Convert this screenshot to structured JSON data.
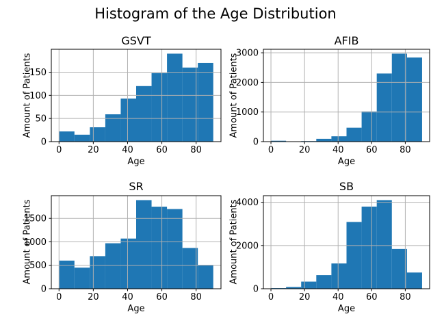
{
  "figure": {
    "title": "Histogram of the Age Distribution"
  },
  "colors": {
    "bar": "#1f77b4",
    "grid": "#b0b0b0",
    "spine": "#000000",
    "background": "#ffffff"
  },
  "chart_data": [
    {
      "type": "bar",
      "title": "GSVT",
      "xlabel": "Age",
      "ylabel": "Amount of Patients",
      "bin_start": 0,
      "bin_width": 9,
      "values": [
        22,
        15,
        31,
        59,
        93,
        120,
        148,
        190,
        160,
        170
      ],
      "xticks": [
        0,
        20,
        40,
        60,
        80
      ],
      "yticks": [
        0,
        50,
        100,
        150
      ],
      "xlim": [
        -4.5,
        94.5
      ],
      "ylim": [
        0,
        199.5
      ],
      "grid": true
    },
    {
      "type": "bar",
      "title": "AFIB",
      "xlabel": "Age",
      "ylabel": "Amount of Patients",
      "bin_start": 0,
      "bin_width": 9,
      "values": [
        30,
        8,
        18,
        95,
        180,
        470,
        1020,
        2300,
        2970,
        2840
      ],
      "xticks": [
        0,
        20,
        40,
        60,
        80
      ],
      "yticks": [
        0,
        1000,
        2000,
        3000
      ],
      "xlim": [
        -4.5,
        94.5
      ],
      "ylim": [
        0,
        3118.5
      ],
      "grid": true
    },
    {
      "type": "bar",
      "title": "SR",
      "xlabel": "Age",
      "ylabel": "Amount of Patients",
      "bin_start": 0,
      "bin_width": 9,
      "values": [
        600,
        450,
        695,
        970,
        1070,
        1890,
        1750,
        1700,
        870,
        510
      ],
      "xticks": [
        0,
        20,
        40,
        60,
        80
      ],
      "yticks": [
        0,
        500,
        1000,
        1500
      ],
      "xlim": [
        -4.5,
        94.5
      ],
      "ylim": [
        0,
        1984.5
      ],
      "grid": true
    },
    {
      "type": "bar",
      "title": "SB",
      "xlabel": "Age",
      "ylabel": "Amount of Patients",
      "bin_start": 0,
      "bin_width": 9,
      "values": [
        30,
        80,
        330,
        630,
        1170,
        3090,
        3800,
        4100,
        1840,
        750
      ],
      "xticks": [
        0,
        20,
        40,
        60,
        80
      ],
      "yticks": [
        0,
        2000,
        4000
      ],
      "xlim": [
        -4.5,
        94.5
      ],
      "ylim": [
        0,
        4305
      ],
      "grid": true
    }
  ]
}
